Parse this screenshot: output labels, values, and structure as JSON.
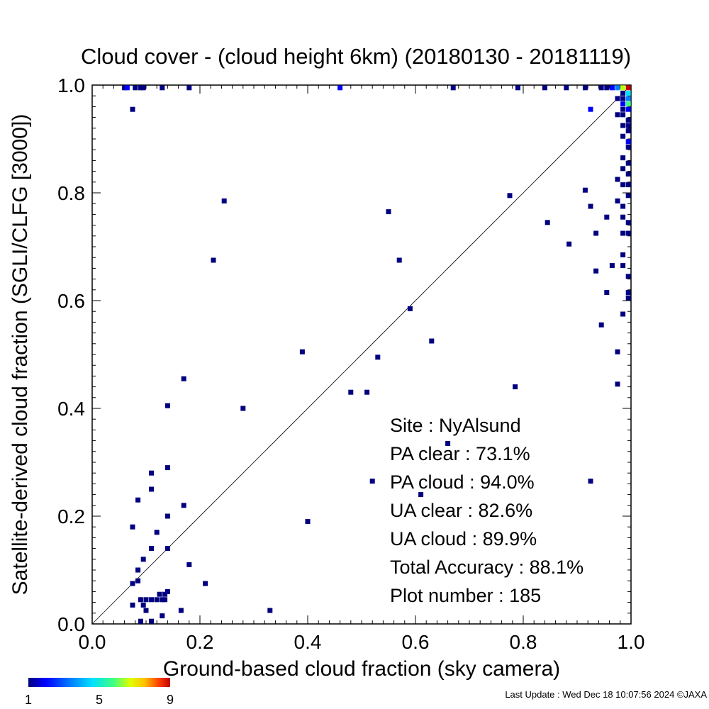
{
  "chart_data": {
    "type": "heatmap",
    "title": "Cloud cover - (cloud height 6km)  (20180130 - 20181119)",
    "xlabel": "Ground-based cloud fraction (sky camera)",
    "ylabel": "Satellite-derived cloud fraction (SGLI/CLFG [3000])",
    "xlim": [
      0,
      1
    ],
    "ylim": [
      0,
      1
    ],
    "x_ticks": [
      "0.0",
      "0.2",
      "0.4",
      "0.6",
      "0.8",
      "1.0"
    ],
    "y_ticks": [
      "0.0",
      "0.2",
      "0.4",
      "0.6",
      "0.8",
      "1.0"
    ],
    "reference_line": "y = x",
    "colorbar": {
      "min": 1,
      "max": 9,
      "tick_labels": [
        "1",
        "5",
        "9"
      ]
    },
    "stats": [
      {
        "label": "Site : NyAlsund"
      },
      {
        "label": "PA clear :  73.1%"
      },
      {
        "label": "PA cloud :  94.0%"
      },
      {
        "label": "UA clear :  82.6%"
      },
      {
        "label": "UA cloud :  89.9%"
      },
      {
        "label": "Total Accuracy :  88.1%"
      },
      {
        "label": "Plot number :       185"
      }
    ],
    "points": [
      [
        0.06,
        0.995,
        1
      ],
      [
        0.065,
        0.995,
        2
      ],
      [
        0.08,
        0.995,
        1
      ],
      [
        0.09,
        0.995,
        1
      ],
      [
        0.095,
        0.995,
        1
      ],
      [
        0.13,
        0.995,
        1
      ],
      [
        0.18,
        0.995,
        1
      ],
      [
        0.46,
        0.995,
        2
      ],
      [
        0.67,
        0.995,
        1
      ],
      [
        0.79,
        0.995,
        1
      ],
      [
        0.84,
        0.995,
        1
      ],
      [
        0.88,
        0.995,
        1
      ],
      [
        0.915,
        0.995,
        1
      ],
      [
        0.945,
        0.995,
        1
      ],
      [
        0.955,
        0.995,
        1
      ],
      [
        0.965,
        0.995,
        2
      ],
      [
        0.975,
        0.995,
        3
      ],
      [
        0.985,
        0.995,
        6
      ],
      [
        0.995,
        0.995,
        9
      ],
      [
        0.075,
        0.955,
        1
      ],
      [
        0.925,
        0.955,
        2
      ],
      [
        0.985,
        0.985,
        1
      ],
      [
        0.995,
        0.985,
        4
      ],
      [
        0.975,
        0.975,
        1
      ],
      [
        0.985,
        0.975,
        1
      ],
      [
        0.995,
        0.975,
        3
      ],
      [
        0.985,
        0.965,
        2
      ],
      [
        0.995,
        0.965,
        5
      ],
      [
        0.985,
        0.955,
        1
      ],
      [
        0.995,
        0.955,
        2
      ],
      [
        0.975,
        0.945,
        1
      ],
      [
        0.985,
        0.945,
        1
      ],
      [
        0.995,
        0.935,
        1
      ],
      [
        0.985,
        0.925,
        1
      ],
      [
        0.995,
        0.925,
        1
      ],
      [
        0.995,
        0.915,
        1
      ],
      [
        0.985,
        0.905,
        1
      ],
      [
        0.995,
        0.895,
        2
      ],
      [
        0.995,
        0.885,
        1
      ],
      [
        0.985,
        0.865,
        1
      ],
      [
        0.995,
        0.855,
        1
      ],
      [
        0.985,
        0.845,
        1
      ],
      [
        0.995,
        0.835,
        1
      ],
      [
        0.975,
        0.825,
        1
      ],
      [
        0.985,
        0.815,
        1
      ],
      [
        0.995,
        0.815,
        1
      ],
      [
        0.995,
        0.795,
        1
      ],
      [
        0.975,
        0.785,
        1
      ],
      [
        0.985,
        0.775,
        1
      ],
      [
        0.985,
        0.755,
        1
      ],
      [
        0.995,
        0.745,
        1
      ],
      [
        0.985,
        0.725,
        1
      ],
      [
        0.995,
        0.725,
        1
      ],
      [
        0.985,
        0.685,
        1
      ],
      [
        0.985,
        0.665,
        1
      ],
      [
        0.995,
        0.645,
        1
      ],
      [
        0.995,
        0.615,
        1
      ],
      [
        0.995,
        0.605,
        1
      ],
      [
        0.985,
        0.575,
        1
      ],
      [
        0.915,
        0.805,
        1
      ],
      [
        0.925,
        0.775,
        1
      ],
      [
        0.955,
        0.755,
        1
      ],
      [
        0.845,
        0.745,
        1
      ],
      [
        0.935,
        0.725,
        1
      ],
      [
        0.885,
        0.705,
        1
      ],
      [
        0.965,
        0.665,
        1
      ],
      [
        0.935,
        0.655,
        1
      ],
      [
        0.955,
        0.615,
        1
      ],
      [
        0.945,
        0.555,
        1
      ],
      [
        0.975,
        0.505,
        1
      ],
      [
        0.975,
        0.445,
        1
      ],
      [
        0.775,
        0.795,
        1
      ],
      [
        0.785,
        0.44,
        1
      ],
      [
        0.925,
        0.265,
        1
      ],
      [
        0.245,
        0.785,
        1
      ],
      [
        0.225,
        0.675,
        1
      ],
      [
        0.55,
        0.765,
        1
      ],
      [
        0.57,
        0.675,
        1
      ],
      [
        0.59,
        0.585,
        1
      ],
      [
        0.63,
        0.525,
        1
      ],
      [
        0.39,
        0.505,
        1
      ],
      [
        0.53,
        0.495,
        1
      ],
      [
        0.48,
        0.43,
        1
      ],
      [
        0.51,
        0.43,
        1
      ],
      [
        0.28,
        0.4,
        1
      ],
      [
        0.17,
        0.455,
        1
      ],
      [
        0.14,
        0.405,
        1
      ],
      [
        0.66,
        0.335,
        1
      ],
      [
        0.61,
        0.24,
        1
      ],
      [
        0.52,
        0.265,
        1
      ],
      [
        0.4,
        0.19,
        1
      ],
      [
        0.11,
        0.28,
        1
      ],
      [
        0.14,
        0.29,
        1
      ],
      [
        0.11,
        0.25,
        1
      ],
      [
        0.085,
        0.23,
        1
      ],
      [
        0.17,
        0.22,
        1
      ],
      [
        0.14,
        0.2,
        1
      ],
      [
        0.075,
        0.18,
        1
      ],
      [
        0.12,
        0.17,
        1
      ],
      [
        0.11,
        0.14,
        1
      ],
      [
        0.14,
        0.14,
        1
      ],
      [
        0.095,
        0.12,
        1
      ],
      [
        0.18,
        0.11,
        1
      ],
      [
        0.085,
        0.1,
        1
      ],
      [
        0.085,
        0.08,
        1
      ],
      [
        0.075,
        0.075,
        1
      ],
      [
        0.21,
        0.075,
        1
      ],
      [
        0.14,
        0.06,
        1
      ],
      [
        0.09,
        0.045,
        1
      ],
      [
        0.1,
        0.045,
        1
      ],
      [
        0.11,
        0.045,
        1
      ],
      [
        0.12,
        0.045,
        1
      ],
      [
        0.13,
        0.045,
        1
      ],
      [
        0.135,
        0.045,
        1
      ],
      [
        0.125,
        0.055,
        1
      ],
      [
        0.135,
        0.055,
        1
      ],
      [
        0.075,
        0.035,
        1
      ],
      [
        0.095,
        0.035,
        1
      ],
      [
        0.1,
        0.025,
        1
      ],
      [
        0.165,
        0.025,
        1
      ],
      [
        0.33,
        0.025,
        1
      ],
      [
        0.13,
        0.015,
        1
      ],
      [
        0.09,
        0.005,
        1
      ],
      [
        0.11,
        0.005,
        1
      ]
    ]
  },
  "footer": {
    "last_update": "Last Update : Wed Dec 18 10:07:56 2024  ©JAXA"
  },
  "colors": {
    "scale": [
      "#000080",
      "#0000ff",
      "#0080ff",
      "#00e0ff",
      "#40ff80",
      "#c0ff00",
      "#ffe000",
      "#ff6000",
      "#c00000"
    ]
  }
}
